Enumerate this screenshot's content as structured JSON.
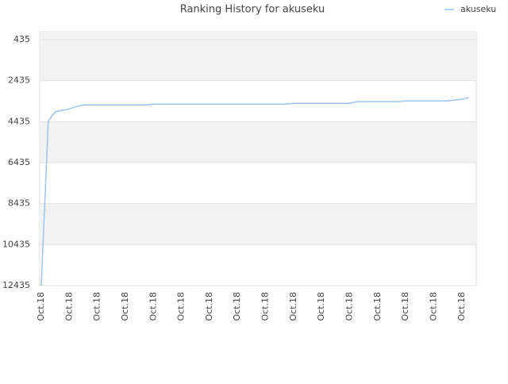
{
  "chart_data": {
    "type": "line",
    "title": "Ranking History for akuseku",
    "categories": [
      "Oct.18",
      null,
      null,
      null,
      "Oct.18",
      null,
      null,
      null,
      "Oct.18",
      null,
      null,
      null,
      "Oct.18",
      null,
      null,
      null,
      "Oct.18",
      null,
      null,
      null,
      "Oct.18",
      null,
      null,
      null,
      "Oct.18",
      null,
      null,
      null,
      "Oct.18",
      null,
      null,
      null,
      "Oct.18",
      null,
      null,
      null,
      "Oct.18",
      null,
      null,
      null,
      "Oct.18",
      null,
      null,
      null,
      "Oct.18",
      null,
      null,
      null,
      "Oct.18",
      null,
      null,
      null,
      "Oct.18",
      null,
      null,
      null,
      "Oct.18",
      null,
      null,
      null,
      "Oct.18",
      null
    ],
    "series": [
      {
        "name": "akuseku",
        "color": "#99c5f0",
        "values": [
          12435,
          4400,
          3960,
          3880,
          3820,
          3700,
          3620,
          3620,
          3620,
          3620,
          3620,
          3620,
          3620,
          3620,
          3620,
          3620,
          3580,
          3580,
          3580,
          3580,
          3580,
          3580,
          3580,
          3580,
          3580,
          3580,
          3580,
          3580,
          3580,
          3580,
          3580,
          3580,
          3580,
          3580,
          3580,
          3580,
          3540,
          3540,
          3540,
          3540,
          3540,
          3540,
          3540,
          3540,
          3540,
          3460,
          3460,
          3460,
          3460,
          3460,
          3460,
          3460,
          3420,
          3420,
          3420,
          3420,
          3420,
          3420,
          3420,
          3380,
          3340,
          3260
        ]
      }
    ],
    "ylim": [
      435,
      12435
    ],
    "y_inverted": true,
    "yticks": [
      435,
      2435,
      4435,
      6435,
      8435,
      10435,
      12435
    ],
    "grid": true,
    "legend": "top-right"
  }
}
